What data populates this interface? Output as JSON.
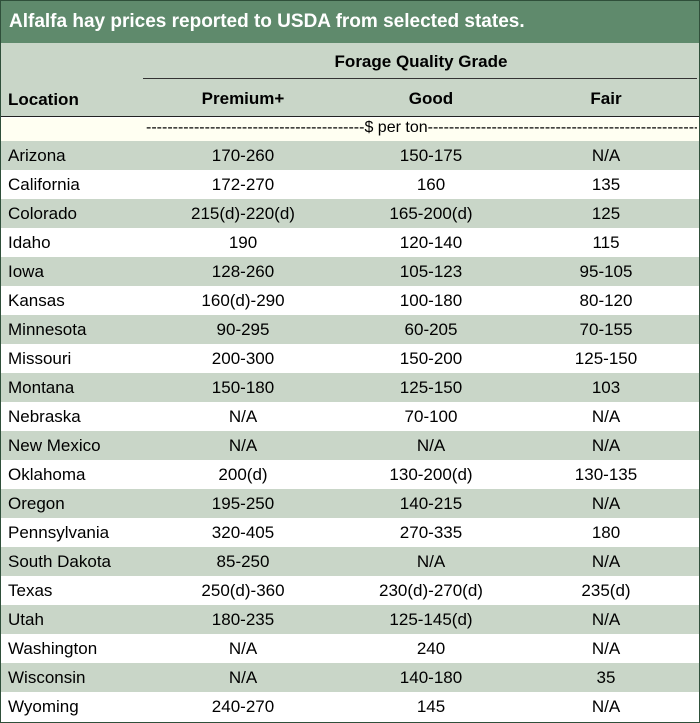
{
  "title": "Alfalfa hay prices reported to USDA from selected states.",
  "header": {
    "group": "Forage Quality Grade",
    "location": "Location",
    "premium": "Premium+",
    "good": "Good",
    "fair": "Fair"
  },
  "unit_line": "-----------------------------------------$ per ton-------------------------------------------------------",
  "colors": {
    "title_bg": "#5f8a6c",
    "band": "#c9d6c8",
    "unit_bg": "#fffff2"
  },
  "rows": [
    {
      "location": "Arizona",
      "premium": "170-260",
      "good": "150-175",
      "fair": "N/A"
    },
    {
      "location": "California",
      "premium": "172-270",
      "good": "160",
      "fair": "135"
    },
    {
      "location": "Colorado",
      "premium": "215(d)-220(d)",
      "good": "165-200(d)",
      "fair": "125"
    },
    {
      "location": "Idaho",
      "premium": "190",
      "good": "120-140",
      "fair": "115"
    },
    {
      "location": "Iowa",
      "premium": "128-260",
      "good": "105-123",
      "fair": "95-105"
    },
    {
      "location": "Kansas",
      "premium": "160(d)-290",
      "good": "100-180",
      "fair": "80-120"
    },
    {
      "location": "Minnesota",
      "premium": "90-295",
      "good": "60-205",
      "fair": "70-155"
    },
    {
      "location": "Missouri",
      "premium": "200-300",
      "good": "150-200",
      "fair": "125-150"
    },
    {
      "location": "Montana",
      "premium": "150-180",
      "good": "125-150",
      "fair": "103"
    },
    {
      "location": "Nebraska",
      "premium": "N/A",
      "good": "70-100",
      "fair": "N/A"
    },
    {
      "location": "New Mexico",
      "premium": "N/A",
      "good": "N/A",
      "fair": "N/A"
    },
    {
      "location": "Oklahoma",
      "premium": "200(d)",
      "good": "130-200(d)",
      "fair": "130-135"
    },
    {
      "location": "Oregon",
      "premium": "195-250",
      "good": "140-215",
      "fair": "N/A"
    },
    {
      "location": "Pennsylvania",
      "premium": "320-405",
      "good": "270-335",
      "fair": "180"
    },
    {
      "location": "South Dakota",
      "premium": "85-250",
      "good": "N/A",
      "fair": "N/A"
    },
    {
      "location": "Texas",
      "premium": "250(d)-360",
      "good": "230(d)-270(d)",
      "fair": "235(d)"
    },
    {
      "location": "Utah",
      "premium": "180-235",
      "good": "125-145(d)",
      "fair": "N/A"
    },
    {
      "location": "Washington",
      "premium": "N/A",
      "good": "240",
      "fair": "N/A"
    },
    {
      "location": "Wisconsin",
      "premium": "N/A",
      "good": "140-180",
      "fair": "35"
    },
    {
      "location": "Wyoming",
      "premium": "240-270",
      "good": "145",
      "fair": "N/A"
    }
  ]
}
